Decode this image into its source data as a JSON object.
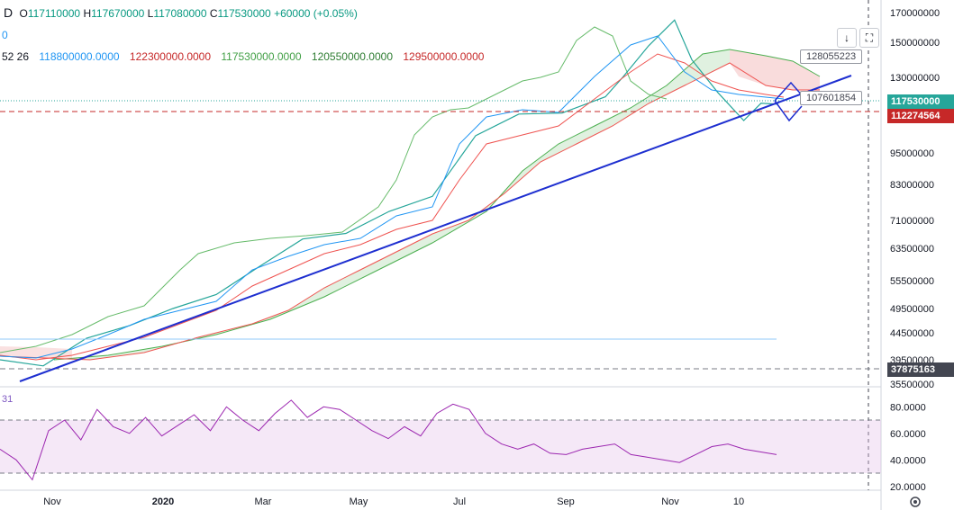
{
  "header": {
    "symbol": "D",
    "o_label": "O",
    "o_value": "117110000",
    "h_label": "H",
    "h_value": "117670000",
    "l_label": "L",
    "l_value": "117080000",
    "c_label": "C",
    "c_value": "117530000",
    "change": "+60000 (+0.05%)",
    "row2_value": "0",
    "ichimoku_params": "52 26",
    "ichimoku_values": [
      "118800000.0000",
      "122300000.0000",
      "117530000.0000",
      "120550000.0000",
      "129500000.0000"
    ],
    "ichimoku_colors": [
      "#2196f3",
      "#c62828",
      "#43a047",
      "#2e7d32",
      "#c62828"
    ]
  },
  "rsi_label": "31",
  "buttons": {
    "down": "↓",
    "fullscreen": "⛶"
  },
  "callouts": {
    "upper": "128055223",
    "lower": "107601854"
  },
  "price_tags": {
    "current": "117530000",
    "red_line": "112274564",
    "low_line": "37875163"
  },
  "settings_icon": "gear-icon",
  "chart_data": {
    "type": "line",
    "title": "",
    "price_axis_ticks": [
      170000000,
      150000000,
      130000000,
      95000000,
      83000000,
      71000000,
      63500000,
      55500000,
      49500000,
      44500000,
      39500000,
      35500000
    ],
    "price_axis_labels": [
      "170000000",
      "150000000",
      "130000000",
      "95000000",
      "83000000",
      "71000000",
      "63500000",
      "55500000",
      "49500000",
      "44500000",
      "39500000",
      "35500000"
    ],
    "x_axis_labels": [
      "Nov",
      "2020",
      "Mar",
      "May",
      "Jul",
      "Sep",
      "Nov",
      "10"
    ],
    "rsi_axis_ticks": [
      80,
      60,
      40,
      20
    ],
    "rsi_axis_labels": [
      "80.0000",
      "60.0000",
      "40.0000",
      "20.0000"
    ],
    "rsi_band": [
      70,
      30
    ],
    "horizontal_lines": {
      "current_price": 117530000,
      "red_dashed": 112274564,
      "low_dashed": 37875163,
      "light_blue": 43500000
    },
    "series": [
      {
        "name": "price",
        "x": [
          0,
          0.05,
          0.1,
          0.15,
          0.2,
          0.25,
          0.3,
          0.35,
          0.4,
          0.45,
          0.5,
          0.55,
          0.6,
          0.65,
          0.7,
          0.72,
          0.75,
          0.78,
          0.8,
          0.83,
          0.86,
          0.88,
          0.9
        ],
        "values": [
          39500000,
          38500000,
          43500000,
          46000000,
          49500000,
          52500000,
          59000000,
          66000000,
          67500000,
          74000000,
          79000000,
          103000000,
          113000000,
          113500000,
          121000000,
          130000000,
          148000000,
          165000000,
          140000000,
          123000000,
          110000000,
          118000000,
          117530000
        ]
      }
    ],
    "trendline": {
      "from": 33500000,
      "to": 131000000
    },
    "rsi_values": [
      48,
      40,
      25,
      62,
      70,
      55,
      78,
      65,
      60,
      72,
      58,
      66,
      74,
      62,
      80,
      70,
      62,
      75,
      85,
      72,
      80,
      78,
      70,
      62,
      56,
      65,
      58,
      75,
      82,
      78,
      60,
      52,
      48,
      52,
      45,
      44,
      48,
      50,
      52,
      44,
      42,
      40,
      38,
      44,
      50,
      52,
      48,
      46,
      44
    ]
  }
}
